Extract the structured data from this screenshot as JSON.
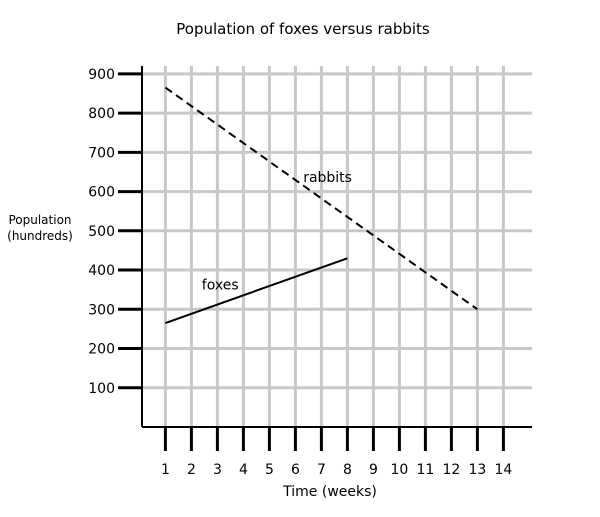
{
  "chart_data": {
    "type": "line",
    "title": "Population of foxes versus rabbits",
    "xlabel": "Time (weeks)",
    "ylabel_lines": [
      "Population",
      "(hundreds)"
    ],
    "x_ticks": [
      1,
      2,
      3,
      4,
      5,
      6,
      7,
      8,
      9,
      10,
      11,
      12,
      13,
      14
    ],
    "y_ticks": [
      100,
      200,
      300,
      400,
      500,
      600,
      700,
      800,
      900
    ],
    "xlim": [
      0.1,
      15.1
    ],
    "ylim": [
      0,
      920
    ],
    "grid": true,
    "series": [
      {
        "name": "rabbits",
        "style": "dashed",
        "color": "#000000",
        "x": [
          1,
          13
        ],
        "y": [
          865,
          300
        ]
      },
      {
        "name": "foxes",
        "style": "solid",
        "color": "#000000",
        "x": [
          1,
          8
        ],
        "y": [
          265,
          430
        ]
      }
    ],
    "annotations": [
      {
        "text": "rabbits",
        "x": 6.3,
        "y": 625
      },
      {
        "text": "foxes",
        "x": 2.4,
        "y": 350
      }
    ]
  }
}
